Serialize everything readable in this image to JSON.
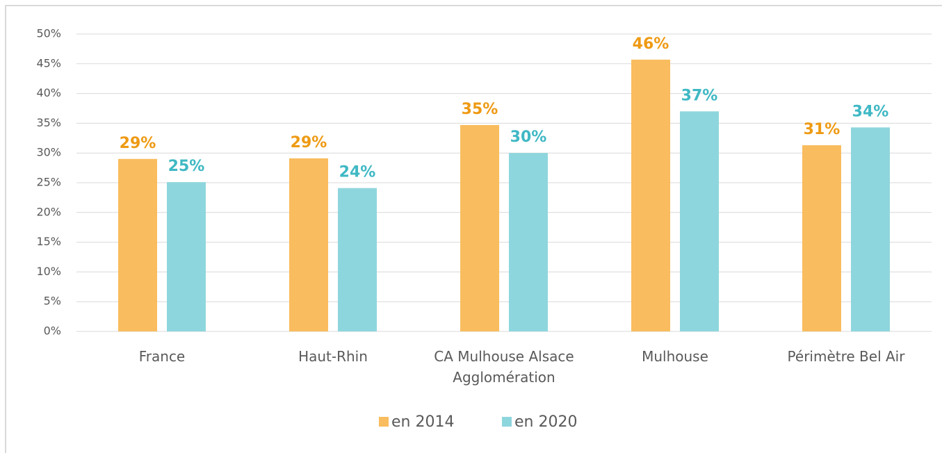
{
  "chart_data": {
    "type": "bar",
    "categories": [
      "France",
      "Haut-Rhin",
      "CA Mulhouse Alsace Agglomération",
      "Mulhouse",
      "Périmètre Bel Air"
    ],
    "series": [
      {
        "name": "en 2014",
        "color": "#f9bc5e",
        "label_color": "#ee9a13",
        "values": [
          29.0,
          29.1,
          34.7,
          45.7,
          31.3
        ],
        "value_labels": [
          "29%",
          "29%",
          "35%",
          "46%",
          "31%"
        ]
      },
      {
        "name": "en 2020",
        "color": "#8ed6dd",
        "label_color": "#3fb8c4",
        "values": [
          25.1,
          24.1,
          30.0,
          37.0,
          34.3
        ],
        "value_labels": [
          "25%",
          "24%",
          "30%",
          "37%",
          "34%"
        ]
      }
    ],
    "ylim": [
      0,
      50
    ],
    "yticks": [
      {
        "value": 0,
        "label": "0%"
      },
      {
        "value": 5,
        "label": "5%"
      },
      {
        "value": 10,
        "label": "10%"
      },
      {
        "value": 15,
        "label": "15%"
      },
      {
        "value": 20,
        "label": "20%"
      },
      {
        "value": 25,
        "label": "25%"
      },
      {
        "value": 30,
        "label": "30%"
      },
      {
        "value": 35,
        "label": "35%"
      },
      {
        "value": 40,
        "label": "40%"
      },
      {
        "value": 45,
        "label": "45%"
      },
      {
        "value": 50,
        "label": "50%"
      }
    ],
    "grid": true,
    "legend": "bottom"
  }
}
